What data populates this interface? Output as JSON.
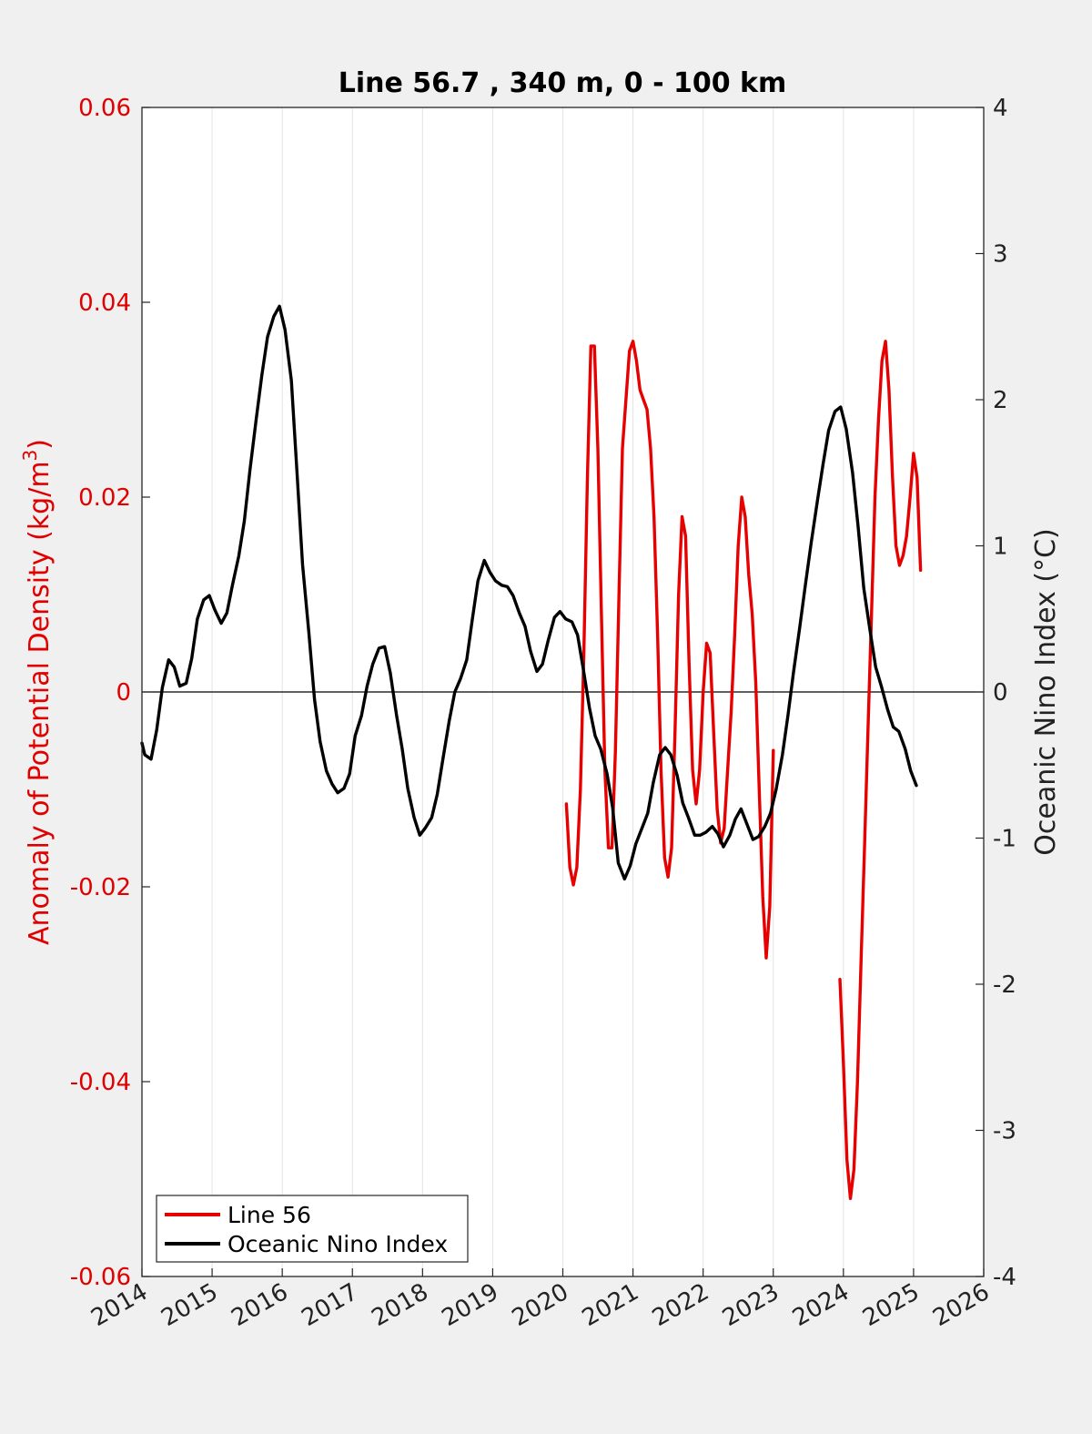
{
  "chart_data": {
    "type": "line",
    "title": "Line 56.7 , 340 m, 0 - 100 km",
    "ylabel_left": "Anomaly of Potential Density (kg/m",
    "ylabel_left_sup": "3",
    "ylabel_left_close": ")",
    "ylabel_right": "Oceanic Nino Index (°C)",
    "xlim": [
      2014,
      2026
    ],
    "ylim_left": [
      -0.06,
      0.06
    ],
    "ylim_right": [
      -4,
      4
    ],
    "xticks": [
      "2014",
      "2015",
      "2016",
      "2017",
      "2018",
      "2019",
      "2020",
      "2021",
      "2022",
      "2023",
      "2024",
      "2025",
      "2026"
    ],
    "yticks_left": [
      "-0.06",
      "-0.04",
      "-0.02",
      "0",
      "0.02",
      "0.04",
      "0.06"
    ],
    "yticks_right": [
      "-4",
      "-3",
      "-2",
      "-1",
      "0",
      "1",
      "2",
      "3",
      "4"
    ],
    "grid": "vertical",
    "legend_position": "bottom-left",
    "colors": {
      "line56": "#e60000",
      "oni": "#000000",
      "left_axis": "#e00000",
      "background": "#f0f0f0"
    },
    "series": [
      {
        "name": "Line 56",
        "axis": "left",
        "segments": [
          [
            [
              2020.05,
              -0.0115
            ],
            [
              2020.1,
              -0.018
            ],
            [
              2020.15,
              -0.0198
            ],
            [
              2020.2,
              -0.018
            ],
            [
              2020.25,
              -0.01
            ],
            [
              2020.3,
              0.004
            ],
            [
              2020.35,
              0.022
            ],
            [
              2020.4,
              0.0355
            ],
            [
              2020.45,
              0.0355
            ],
            [
              2020.5,
              0.025
            ],
            [
              2020.55,
              0.008
            ],
            [
              2020.6,
              -0.008
            ],
            [
              2020.65,
              -0.016
            ],
            [
              2020.7,
              -0.016
            ],
            [
              2020.75,
              -0.006
            ],
            [
              2020.8,
              0.01
            ],
            [
              2020.85,
              0.025
            ],
            [
              2020.95,
              0.035
            ],
            [
              2021.0,
              0.036
            ],
            [
              2021.05,
              0.034
            ],
            [
              2021.1,
              0.031
            ],
            [
              2021.15,
              0.03
            ],
            [
              2021.2,
              0.029
            ],
            [
              2021.25,
              0.025
            ],
            [
              2021.3,
              0.018
            ],
            [
              2021.35,
              0.006
            ],
            [
              2021.4,
              -0.008
            ],
            [
              2021.45,
              -0.017
            ],
            [
              2021.5,
              -0.019
            ],
            [
              2021.55,
              -0.016
            ],
            [
              2021.6,
              -0.004
            ],
            [
              2021.65,
              0.01
            ],
            [
              2021.7,
              0.018
            ],
            [
              2021.75,
              0.016
            ],
            [
              2021.8,
              0.003
            ],
            [
              2021.85,
              -0.008
            ],
            [
              2021.9,
              -0.0115
            ],
            [
              2021.95,
              -0.008
            ],
            [
              2022.0,
              0.0
            ],
            [
              2022.05,
              0.005
            ],
            [
              2022.1,
              0.004
            ],
            [
              2022.15,
              -0.004
            ],
            [
              2022.2,
              -0.012
            ],
            [
              2022.25,
              -0.0155
            ],
            [
              2022.3,
              -0.014
            ],
            [
              2022.35,
              -0.008
            ],
            [
              2022.4,
              -0.002
            ],
            [
              2022.45,
              0.006
            ],
            [
              2022.5,
              0.015
            ],
            [
              2022.55,
              0.02
            ],
            [
              2022.6,
              0.018
            ],
            [
              2022.65,
              0.012
            ],
            [
              2022.7,
              0.008
            ],
            [
              2022.75,
              0.001
            ],
            [
              2022.8,
              -0.01
            ],
            [
              2022.85,
              -0.021
            ],
            [
              2022.9,
              -0.0273
            ],
            [
              2022.95,
              -0.022
            ],
            [
              2023.0,
              -0.006
            ]
          ],
          [
            [
              2023.95,
              -0.0295
            ],
            [
              2024.0,
              -0.038
            ],
            [
              2024.05,
              -0.048
            ],
            [
              2024.1,
              -0.052
            ],
            [
              2024.15,
              -0.049
            ],
            [
              2024.2,
              -0.04
            ],
            [
              2024.25,
              -0.028
            ],
            [
              2024.3,
              -0.016
            ],
            [
              2024.35,
              -0.004
            ],
            [
              2024.4,
              0.008
            ],
            [
              2024.45,
              0.02
            ],
            [
              2024.5,
              0.028
            ],
            [
              2024.55,
              0.034
            ],
            [
              2024.6,
              0.036
            ],
            [
              2024.65,
              0.031
            ],
            [
              2024.7,
              0.022
            ],
            [
              2024.75,
              0.015
            ],
            [
              2024.8,
              0.013
            ],
            [
              2024.85,
              0.014
            ],
            [
              2024.9,
              0.016
            ],
            [
              2024.95,
              0.02
            ],
            [
              2025.0,
              0.0245
            ],
            [
              2025.05,
              0.022
            ],
            [
              2025.1,
              0.0125
            ]
          ]
        ]
      },
      {
        "name": "Oceanic Nino Index",
        "axis": "right",
        "segments": [
          [
            [
              2014.0,
              -0.35
            ],
            [
              2014.04,
              -0.43
            ],
            [
              2014.13,
              -0.46
            ],
            [
              2014.21,
              -0.26
            ],
            [
              2014.29,
              0.03
            ],
            [
              2014.38,
              0.22
            ],
            [
              2014.46,
              0.17
            ],
            [
              2014.54,
              0.04
            ],
            [
              2014.63,
              0.06
            ],
            [
              2014.71,
              0.23
            ],
            [
              2014.79,
              0.5
            ],
            [
              2014.88,
              0.63
            ],
            [
              2014.96,
              0.66
            ],
            [
              2015.04,
              0.56
            ],
            [
              2015.13,
              0.47
            ],
            [
              2015.21,
              0.54
            ],
            [
              2015.29,
              0.73
            ],
            [
              2015.38,
              0.93
            ],
            [
              2015.46,
              1.17
            ],
            [
              2015.54,
              1.52
            ],
            [
              2015.63,
              1.87
            ],
            [
              2015.71,
              2.17
            ],
            [
              2015.79,
              2.43
            ],
            [
              2015.88,
              2.57
            ],
            [
              2015.96,
              2.64
            ],
            [
              2016.04,
              2.48
            ],
            [
              2016.13,
              2.13
            ],
            [
              2016.21,
              1.5
            ],
            [
              2016.29,
              0.87
            ],
            [
              2016.38,
              0.4
            ],
            [
              2016.46,
              -0.05
            ],
            [
              2016.54,
              -0.34
            ],
            [
              2016.63,
              -0.54
            ],
            [
              2016.71,
              -0.63
            ],
            [
              2016.79,
              -0.69
            ],
            [
              2016.88,
              -0.66
            ],
            [
              2016.96,
              -0.56
            ],
            [
              2017.04,
              -0.3
            ],
            [
              2017.13,
              -0.16
            ],
            [
              2017.21,
              0.04
            ],
            [
              2017.29,
              0.19
            ],
            [
              2017.38,
              0.3
            ],
            [
              2017.46,
              0.31
            ],
            [
              2017.54,
              0.13
            ],
            [
              2017.63,
              -0.16
            ],
            [
              2017.71,
              -0.39
            ],
            [
              2017.79,
              -0.66
            ],
            [
              2017.88,
              -0.86
            ],
            [
              2017.96,
              -0.98
            ],
            [
              2018.04,
              -0.93
            ],
            [
              2018.13,
              -0.86
            ],
            [
              2018.21,
              -0.7
            ],
            [
              2018.29,
              -0.46
            ],
            [
              2018.38,
              -0.2
            ],
            [
              2018.46,
              0.0
            ],
            [
              2018.54,
              0.09
            ],
            [
              2018.63,
              0.22
            ],
            [
              2018.71,
              0.5
            ],
            [
              2018.79,
              0.76
            ],
            [
              2018.88,
              0.9
            ],
            [
              2018.96,
              0.82
            ],
            [
              2019.04,
              0.76
            ],
            [
              2019.13,
              0.73
            ],
            [
              2019.21,
              0.72
            ],
            [
              2019.29,
              0.66
            ],
            [
              2019.38,
              0.54
            ],
            [
              2019.46,
              0.45
            ],
            [
              2019.54,
              0.28
            ],
            [
              2019.63,
              0.14
            ],
            [
              2019.71,
              0.19
            ],
            [
              2019.79,
              0.35
            ],
            [
              2019.88,
              0.51
            ],
            [
              2019.96,
              0.55
            ],
            [
              2020.04,
              0.5
            ],
            [
              2020.13,
              0.48
            ],
            [
              2020.21,
              0.39
            ],
            [
              2020.29,
              0.16
            ],
            [
              2020.38,
              -0.11
            ],
            [
              2020.46,
              -0.3
            ],
            [
              2020.54,
              -0.39
            ],
            [
              2020.63,
              -0.56
            ],
            [
              2020.71,
              -0.79
            ],
            [
              2020.79,
              -1.17
            ],
            [
              2020.88,
              -1.28
            ],
            [
              2020.96,
              -1.19
            ],
            [
              2021.04,
              -1.04
            ],
            [
              2021.13,
              -0.93
            ],
            [
              2021.21,
              -0.83
            ],
            [
              2021.29,
              -0.62
            ],
            [
              2021.38,
              -0.43
            ],
            [
              2021.46,
              -0.38
            ],
            [
              2021.54,
              -0.43
            ],
            [
              2021.63,
              -0.57
            ],
            [
              2021.71,
              -0.76
            ],
            [
              2021.79,
              -0.86
            ],
            [
              2021.88,
              -0.98
            ],
            [
              2021.96,
              -0.98
            ],
            [
              2022.04,
              -0.96
            ],
            [
              2022.13,
              -0.92
            ],
            [
              2022.21,
              -0.97
            ],
            [
              2022.29,
              -1.06
            ],
            [
              2022.38,
              -0.98
            ],
            [
              2022.46,
              -0.87
            ],
            [
              2022.54,
              -0.8
            ],
            [
              2022.63,
              -0.91
            ],
            [
              2022.71,
              -1.01
            ],
            [
              2022.79,
              -0.99
            ],
            [
              2022.88,
              -0.92
            ],
            [
              2022.96,
              -0.83
            ],
            [
              2023.04,
              -0.67
            ],
            [
              2023.13,
              -0.43
            ],
            [
              2023.21,
              -0.16
            ],
            [
              2023.29,
              0.14
            ],
            [
              2023.38,
              0.45
            ],
            [
              2023.46,
              0.74
            ],
            [
              2023.54,
              1.02
            ],
            [
              2023.63,
              1.31
            ],
            [
              2023.71,
              1.56
            ],
            [
              2023.79,
              1.79
            ],
            [
              2023.88,
              1.92
            ],
            [
              2023.96,
              1.95
            ],
            [
              2024.04,
              1.8
            ],
            [
              2024.13,
              1.5
            ],
            [
              2024.21,
              1.13
            ],
            [
              2024.29,
              0.71
            ],
            [
              2024.38,
              0.42
            ],
            [
              2024.46,
              0.17
            ],
            [
              2024.54,
              0.04
            ],
            [
              2024.63,
              -0.12
            ],
            [
              2024.71,
              -0.24
            ],
            [
              2024.79,
              -0.27
            ],
            [
              2024.88,
              -0.39
            ],
            [
              2024.96,
              -0.54
            ],
            [
              2025.04,
              -0.64
            ]
          ]
        ]
      }
    ]
  }
}
